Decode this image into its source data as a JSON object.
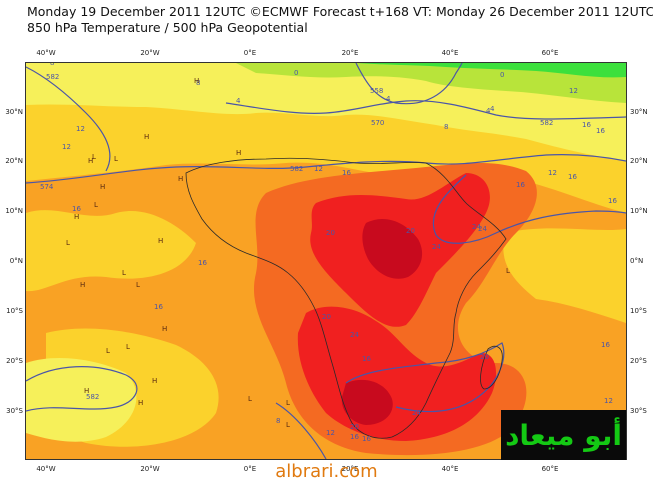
{
  "header": {
    "title_line1": "Monday 19 December 2011 12UTC ©ECMWF Forecast t+168 VT: Monday 26 December 2011 12UTC",
    "title_line2": "850 hPa Temperature / 500 hPa Geopotential"
  },
  "axes": {
    "lon_top": [
      "40°W",
      "20°W",
      "0°E",
      "20°E",
      "40°E",
      "60°E"
    ],
    "lon_bottom": [
      "40°W",
      "20°W",
      "0°E",
      "20°E",
      "40°E",
      "60°E"
    ],
    "lat_left": [
      "30°N",
      "20°N",
      "10°N",
      "0°N",
      "10°S",
      "20°S",
      "30°S"
    ],
    "lat_right": [
      "30°N",
      "20°N",
      "10°N",
      "0°N",
      "10°S",
      "20°S",
      "30°S"
    ]
  },
  "contour_labels": [
    {
      "text": "582"
    },
    {
      "text": "8"
    },
    {
      "text": "8"
    },
    {
      "text": "4"
    },
    {
      "text": "0"
    },
    {
      "text": "4"
    },
    {
      "text": "570"
    },
    {
      "text": "558"
    },
    {
      "text": "4"
    },
    {
      "text": "0"
    },
    {
      "text": "12"
    },
    {
      "text": "4"
    },
    {
      "text": "582"
    },
    {
      "text": "16"
    },
    {
      "text": "16"
    },
    {
      "text": "12"
    },
    {
      "text": "12"
    },
    {
      "text": "8"
    },
    {
      "text": "574"
    },
    {
      "text": "582"
    },
    {
      "text": "12"
    },
    {
      "text": "16"
    },
    {
      "text": "16"
    },
    {
      "text": "16"
    },
    {
      "text": "20"
    },
    {
      "text": "20"
    },
    {
      "text": "24"
    },
    {
      "text": "24"
    },
    {
      "text": "24"
    },
    {
      "text": "16"
    },
    {
      "text": "16"
    },
    {
      "text": "20"
    },
    {
      "text": "24"
    },
    {
      "text": "20"
    },
    {
      "text": "16"
    },
    {
      "text": "16"
    },
    {
      "text": "12"
    },
    {
      "text": "12"
    },
    {
      "text": "8"
    },
    {
      "text": "16"
    },
    {
      "text": "20"
    },
    {
      "text": "582"
    },
    {
      "text": "24"
    },
    {
      "text": "16"
    },
    {
      "text": "12"
    },
    {
      "text": "16"
    },
    {
      "text": "16"
    }
  ],
  "pressure_labels": [
    "H",
    "H",
    "H",
    "L",
    "H",
    "H",
    "L",
    "H",
    "H",
    "L",
    "H",
    "L",
    "H",
    "L",
    "L",
    "H",
    "L",
    "L",
    "H",
    "H",
    "L",
    "L",
    "H",
    "L",
    "L"
  ],
  "palette": {
    "cold": "#3ce03c",
    "cool": "#b8e43a",
    "mild": "#f6f05a",
    "warm": "#fbd22c",
    "warmer": "#f9a224",
    "hot": "#f46a22",
    "hotter": "#f02020",
    "hottest": "#c80a1e",
    "contour": "#4a55a8",
    "coast": "#2a2a2a"
  },
  "branding": {
    "logo_text": "أبو ميعاد",
    "url": "albrari.com"
  }
}
